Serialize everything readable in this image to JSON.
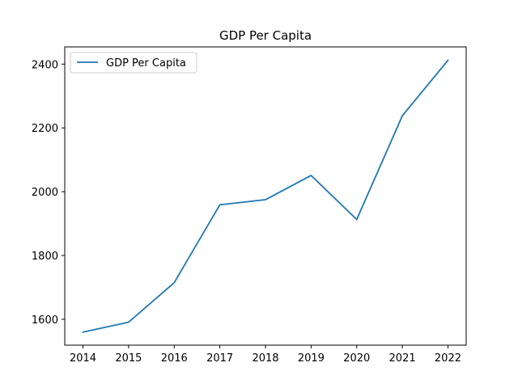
{
  "colors": {
    "series": "#1f77b4",
    "axes": "#000000",
    "background": "#ffffff",
    "legend_border": "#cccccc"
  },
  "chart_data": {
    "type": "line",
    "title": "GDP Per Capita",
    "xlabel": "",
    "ylabel": "",
    "x": [
      2014,
      2015,
      2016,
      2017,
      2018,
      2019,
      2020,
      2021,
      2022
    ],
    "xtick_labels": [
      "2014",
      "2015",
      "2016",
      "2017",
      "2018",
      "2019",
      "2020",
      "2021",
      "2022"
    ],
    "yticks": [
      1600,
      1800,
      2000,
      2200,
      2400
    ],
    "ytick_labels": [
      "1600",
      "1800",
      "2000",
      "2200",
      "2400"
    ],
    "xlim": [
      2013.6,
      2022.4
    ],
    "ylim": [
      1519,
      2454
    ],
    "grid": false,
    "legend_position": "upper-left",
    "series": [
      {
        "name": "GDP Per Capita",
        "values": [
          1560,
          1591,
          1715,
          1959,
          1975,
          2051,
          1913,
          2238,
          2412
        ]
      }
    ]
  }
}
